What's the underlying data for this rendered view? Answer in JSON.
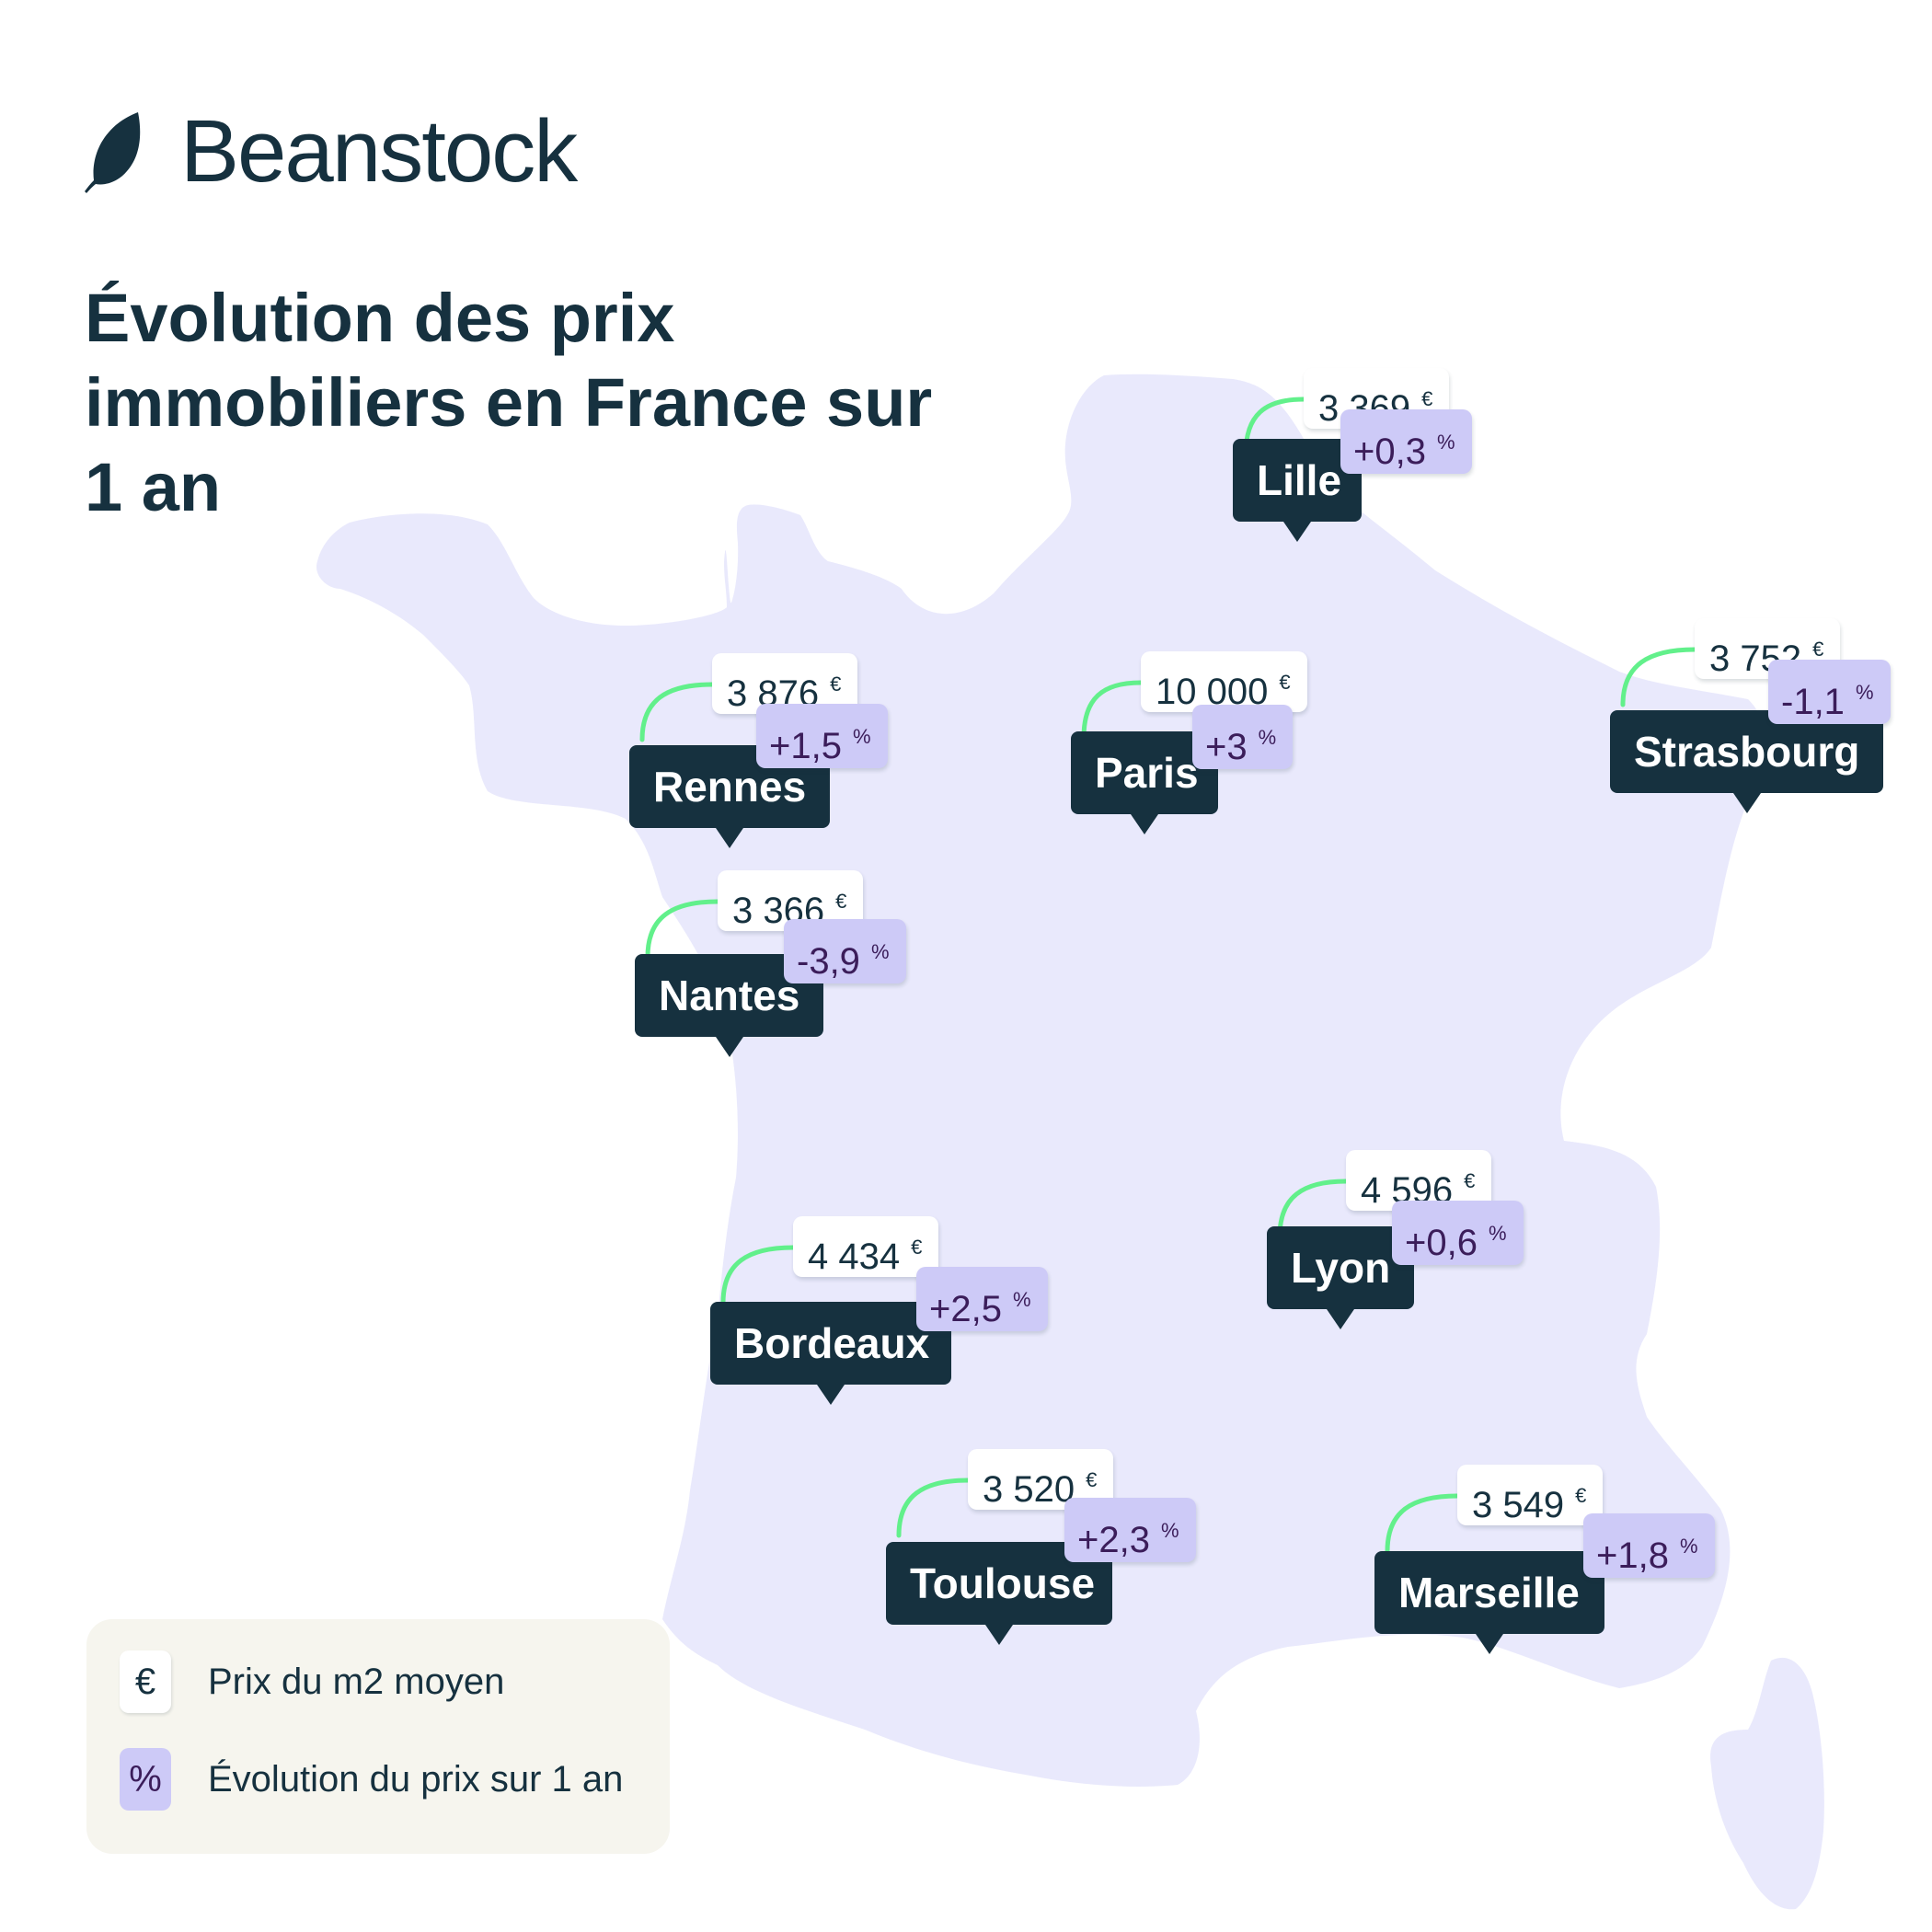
{
  "brand": {
    "name": "Beanstock",
    "logo_icon": "leaf-icon"
  },
  "title": "Évolution des prix\nimmobiliers en France sur\n1 an",
  "colors": {
    "map_fill": "#e9e9fc",
    "label_bg": "#16313f",
    "price_bg": "#ffffff",
    "pct_bg": "#cdcaf7",
    "pct_text": "#3b1d5a",
    "connector": "#62f08b",
    "legend_bg": "#f6f5ee"
  },
  "currency_symbol": "€",
  "percent_symbol": "%",
  "cities": [
    {
      "name": "Lille",
      "price": "3 369",
      "change": "+0,3"
    },
    {
      "name": "Strasbourg",
      "price": "3 752",
      "change": "-1,1"
    },
    {
      "name": "Rennes",
      "price": "3 876",
      "change": "+1,5"
    },
    {
      "name": "Paris",
      "price": "10 000",
      "change": "+3"
    },
    {
      "name": "Nantes",
      "price": "3 366",
      "change": "-3,9"
    },
    {
      "name": "Lyon",
      "price": "4 596",
      "change": "+0,6"
    },
    {
      "name": "Bordeaux",
      "price": "4 434",
      "change": "+2,5"
    },
    {
      "name": "Toulouse",
      "price": "3 520",
      "change": "+2,3"
    },
    {
      "name": "Marseille",
      "price": "3 549",
      "change": "+1,8"
    }
  ],
  "legend": {
    "items": [
      {
        "symbol": "€",
        "label": "Prix du m2 moyen"
      },
      {
        "symbol": "%",
        "label": "Évolution du prix sur 1 an"
      }
    ]
  }
}
